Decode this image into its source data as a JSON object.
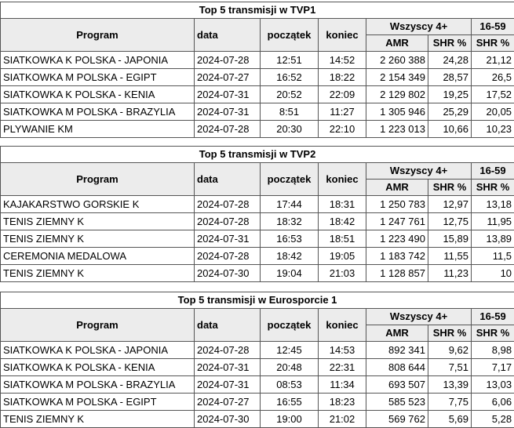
{
  "sections": [
    {
      "title": "Top 5 transmisji w TVP1",
      "headers": {
        "program": "Program",
        "date": "data",
        "start": "początek",
        "end": "koniec",
        "group_all": "Wszyscy 4+",
        "group_age": "16-59",
        "amr": "AMR",
        "shr_all": "SHR %",
        "shr_age": "SHR %"
      },
      "rows": [
        [
          "SIATKOWKA K POLSKA - JAPONIA",
          "2024-07-28",
          "12:51",
          "14:52",
          "2 260 388",
          "24,28",
          "21,12"
        ],
        [
          "SIATKOWKA M POLSKA - EGIPT",
          "2024-07-27",
          "16:52",
          "18:22",
          "2 154 349",
          "28,57",
          "26,5"
        ],
        [
          "SIATKOWKA K POLSKA - KENIA",
          "2024-07-31",
          "20:52",
          "22:09",
          "2 129 802",
          "19,25",
          "17,52"
        ],
        [
          "SIATKOWKA M POLSKA - BRAZYLIA",
          "2024-07-31",
          "8:51",
          "11:27",
          "1 305 946",
          "25,29",
          "20,05"
        ],
        [
          "PLYWANIE KM",
          "2024-07-28",
          "20:30",
          "22:10",
          "1 223 013",
          "10,66",
          "10,23"
        ]
      ]
    },
    {
      "title": "Top 5 transmisji w TVP2",
      "headers": {
        "program": "Program",
        "date": "data",
        "start": "początek",
        "end": "koniec",
        "group_all": "Wszyscy 4+",
        "group_age": "16-59",
        "amr": "AMR",
        "shr_all": "SHR %",
        "shr_age": "SHR %"
      },
      "rows": [
        [
          "KAJAKARSTWO GORSKIE K",
          "2024-07-28",
          "17:44",
          "18:31",
          "1 250 783",
          "12,97",
          "13,18"
        ],
        [
          "TENIS ZIEMNY K",
          "2024-07-28",
          "18:32",
          "18:42",
          "1 247 761",
          "12,75",
          "11,95"
        ],
        [
          "TENIS ZIEMNY K",
          "2024-07-31",
          "16:53",
          "18:51",
          "1 223 490",
          "15,89",
          "13,89"
        ],
        [
          "CEREMONIA MEDALOWA",
          "2024-07-28",
          "18:42",
          "19:05",
          "1 183 742",
          "11,55",
          "11,5"
        ],
        [
          "TENIS ZIEMNY K",
          "2024-07-30",
          "19:04",
          "21:03",
          "1 128 857",
          "11,23",
          "10"
        ]
      ]
    },
    {
      "title": "Top 5 transmisji w Eurosporcie 1",
      "headers": {
        "program": "Program",
        "date": "data",
        "start": "początek",
        "end": "koniec",
        "group_all": "Wszyscy 4+",
        "group_age": "16-59",
        "amr": "AMR",
        "shr_all": "SHR %",
        "shr_age": "SHR %"
      },
      "rows": [
        [
          "SIATKOWKA K POLSKA - JAPONIA",
          "2024-07-28",
          "12:45",
          "14:53",
          "892 341",
          "9,62",
          "8,98"
        ],
        [
          "SIATKOWKA K POLSKA - KENIA",
          "2024-07-31",
          "20:48",
          "22:31",
          "808 644",
          "7,51",
          "7,17"
        ],
        [
          "SIATKOWKA M POLSKA - BRAZYLIA",
          "2024-07-31",
          "08:53",
          "11:34",
          "693 507",
          "13,39",
          "13,03"
        ],
        [
          "SIATKOWKA M POLSKA - EGIPT",
          "2024-07-27",
          "16:55",
          "18:23",
          "585 523",
          "7,75",
          "6,06"
        ],
        [
          "TENIS ZIEMNY K",
          "2024-07-30",
          "19:00",
          "21:02",
          "569 762",
          "5,69",
          "5,28"
        ]
      ]
    }
  ]
}
